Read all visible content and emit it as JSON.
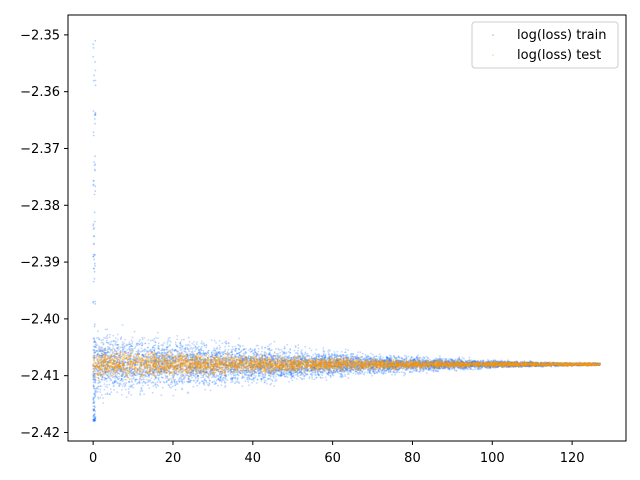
{
  "chart_data": {
    "type": "scatter",
    "title": "",
    "xlabel": "",
    "ylabel": "",
    "xlim": [
      -6.3,
      133.5
    ],
    "ylim": [
      -2.4215,
      -2.3465
    ],
    "x_ticks": [
      0,
      20,
      40,
      60,
      80,
      100,
      120
    ],
    "y_ticks": [
      -2.35,
      -2.36,
      -2.37,
      -2.38,
      -2.39,
      -2.4,
      -2.41,
      -2.42
    ],
    "x_tick_labels": [
      "0",
      "20",
      "40",
      "60",
      "80",
      "100",
      "120"
    ],
    "y_tick_labels": [
      "−2.35",
      "−2.36",
      "−2.37",
      "−2.38",
      "−2.39",
      "−2.40",
      "−2.41",
      "−2.42"
    ],
    "legend_position": "top-right",
    "series": [
      {
        "name": "log(loss) train",
        "color": "#1f77ff",
        "x_range": [
          0,
          127
        ],
        "center": -2.408,
        "spread_start": 0.0045,
        "spread_end": 0.0002,
        "initial_max": -2.35,
        "initial_min": -2.418
      },
      {
        "name": "log(loss) test",
        "color": "#ff9900",
        "x_range": [
          0,
          127
        ],
        "center": -2.408,
        "spread_start": 0.002,
        "spread_end": 0.0002
      }
    ]
  }
}
